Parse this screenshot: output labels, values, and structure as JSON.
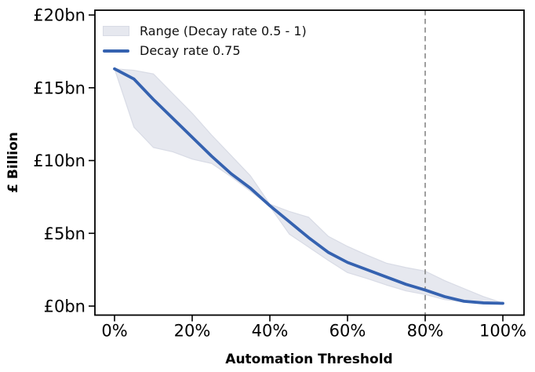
{
  "chart_data": {
    "type": "line",
    "title": "",
    "xlabel": "Automation Threshold",
    "ylabel": "£ Billion",
    "x_percent": [
      0,
      5,
      10,
      15,
      20,
      25,
      30,
      35,
      40,
      45,
      50,
      55,
      60,
      65,
      70,
      75,
      80,
      85,
      90,
      95,
      100
    ],
    "series": [
      {
        "name": "Decay rate 0.75",
        "kind": "line",
        "color": "#3562b0",
        "values_bn": [
          16.3,
          15.6,
          14.2,
          12.9,
          11.6,
          10.3,
          9.1,
          8.1,
          6.9,
          5.8,
          4.7,
          3.7,
          3.0,
          2.5,
          2.0,
          1.5,
          1.1,
          0.65,
          0.33,
          0.22,
          0.19
        ]
      },
      {
        "name": "Range (Decay rate 0.5 - 1)",
        "kind": "band",
        "fill_color": "#e6e8ef",
        "edge_color": "#d8dbe5",
        "upper_bn": [
          16.3,
          16.2,
          15.95,
          14.6,
          13.25,
          11.75,
          10.35,
          8.95,
          7.0,
          6.5,
          6.1,
          4.8,
          4.1,
          3.5,
          2.95,
          2.65,
          2.4,
          1.75,
          1.2,
          0.65,
          0.21
        ],
        "lower_bn": [
          16.3,
          12.3,
          10.9,
          10.6,
          10.1,
          9.8,
          8.9,
          7.9,
          6.85,
          4.95,
          4.05,
          3.15,
          2.3,
          1.9,
          1.45,
          1.05,
          0.8,
          0.45,
          0.28,
          0.16,
          0.19
        ]
      }
    ],
    "vline": {
      "x_percent": 80,
      "style": "dashed",
      "color": "#7f7f7f"
    },
    "x_ticks": {
      "values": [
        0,
        20,
        40,
        60,
        80,
        100
      ],
      "labels": [
        "0%",
        "20%",
        "40%",
        "60%",
        "80%",
        "100%"
      ]
    },
    "y_ticks": {
      "values": [
        0,
        5,
        10,
        15,
        20
      ],
      "labels": [
        "£0bn",
        "£5bn",
        "£10bn",
        "£15bn",
        "£20bn"
      ]
    },
    "xlim": [
      -5.05,
      105.45
    ],
    "ylim": [
      -0.62,
      20.33
    ],
    "grid": false,
    "legend_position": "upper-left",
    "spine_color": "#000000",
    "background_color": "#ffffff",
    "units": "£ billion"
  },
  "legend": {
    "band_label": "Range (Decay rate 0.5 - 1)",
    "line_label": "Decay rate 0.75"
  }
}
